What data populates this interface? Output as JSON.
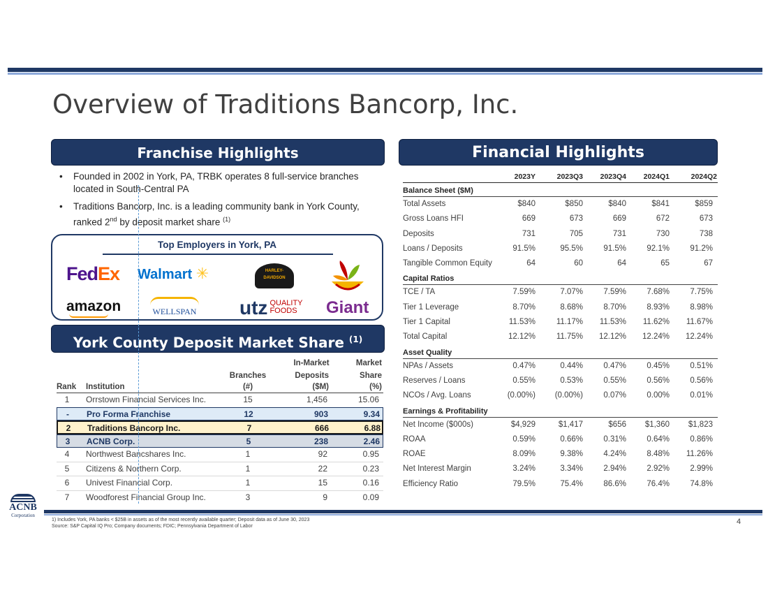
{
  "title": "Overview of Traditions Bancorp, Inc.",
  "franchise": {
    "banner": "Franchise Highlights",
    "bullets": [
      "Founded in 2002 in York, PA, TRBK operates 8 full-service branches located in South-Central PA",
      "Traditions Bancorp, Inc. is a leading community bank in York County, ranked 2"
    ],
    "bullet2_sup": "nd",
    "bullet2_tail": " by deposit market share ",
    "bullet2_note": "(1)"
  },
  "employers": {
    "title": "Top Employers in York, PA",
    "logos": {
      "fedex_fed": "Fed",
      "fedex_ex": "Ex",
      "walmart": "Walmart",
      "harley": "HARLEY-DAVIDSON",
      "amazon": "amazon",
      "wellspan": "WELLSPAN",
      "utz": "utz",
      "utz_tag1": "QUALITY",
      "utz_tag2": "FOODS",
      "giant": "Giant"
    }
  },
  "market_share": {
    "banner": "York County Deposit Market Share",
    "banner_note": "(1)",
    "headers": {
      "rank": "Rank",
      "institution": "Institution",
      "branches_1": "Branches",
      "branches_2": "(#)",
      "deposits_0": "In-Market",
      "deposits_1": "Deposits",
      "deposits_2": "($M)",
      "share_0": "Market",
      "share_1": "Share",
      "share_2": "(%)"
    },
    "rows": [
      {
        "rank": "1",
        "institution": "Orrstown Financial Services Inc.",
        "branches": "15",
        "deposits": "1,456",
        "share": "15.06"
      },
      {
        "rank": "-",
        "institution": "Pro Forma Franchise",
        "branches": "12",
        "deposits": "903",
        "share": "9.34"
      },
      {
        "rank": "2",
        "institution": "Traditions Bancorp Inc.",
        "branches": "7",
        "deposits": "666",
        "share": "6.88"
      },
      {
        "rank": "3",
        "institution": "ACNB Corp.",
        "branches": "5",
        "deposits": "238",
        "share": "2.46"
      },
      {
        "rank": "4",
        "institution": "Northwest Bancshares Inc.",
        "branches": "1",
        "deposits": "92",
        "share": "0.95"
      },
      {
        "rank": "5",
        "institution": "Citizens & Northern Corp.",
        "branches": "1",
        "deposits": "22",
        "share": "0.23"
      },
      {
        "rank": "6",
        "institution": "Univest Financial Corp.",
        "branches": "1",
        "deposits": "15",
        "share": "0.16"
      },
      {
        "rank": "7",
        "institution": "Woodforest Financial Group Inc.",
        "branches": "3",
        "deposits": "9",
        "share": "0.09"
      }
    ]
  },
  "financial": {
    "banner": "Financial Highlights",
    "columns": [
      "2023Y",
      "2023Q3",
      "2023Q4",
      "2024Q1",
      "2024Q2"
    ],
    "sections": [
      {
        "title": "Balance Sheet ($M)",
        "rows": [
          {
            "label": "Total Assets",
            "values": [
              "$840",
              "$850",
              "$840",
              "$841",
              "$859"
            ]
          },
          {
            "label": "Gross Loans HFI",
            "values": [
              "669",
              "673",
              "669",
              "672",
              "673"
            ]
          },
          {
            "label": "Deposits",
            "values": [
              "731",
              "705",
              "731",
              "730",
              "738"
            ]
          },
          {
            "label": "Loans / Deposits",
            "values": [
              "91.5%",
              "95.5%",
              "91.5%",
              "92.1%",
              "91.2%"
            ]
          },
          {
            "label": "Tangible Common Equity",
            "values": [
              "64",
              "60",
              "64",
              "65",
              "67"
            ]
          }
        ]
      },
      {
        "title": "Capital Ratios",
        "rows": [
          {
            "label": "TCE / TA",
            "values": [
              "7.59%",
              "7.07%",
              "7.59%",
              "7.68%",
              "7.75%"
            ]
          },
          {
            "label": "Tier 1 Leverage",
            "values": [
              "8.70%",
              "8.68%",
              "8.70%",
              "8.93%",
              "8.98%"
            ]
          },
          {
            "label": "Tier 1 Capital",
            "values": [
              "11.53%",
              "11.17%",
              "11.53%",
              "11.62%",
              "11.67%"
            ]
          },
          {
            "label": "Total Capital",
            "values": [
              "12.12%",
              "11.75%",
              "12.12%",
              "12.24%",
              "12.24%"
            ]
          }
        ]
      },
      {
        "title": "Asset Quality",
        "rows": [
          {
            "label": "NPAs / Assets",
            "values": [
              "0.47%",
              "0.44%",
              "0.47%",
              "0.45%",
              "0.51%"
            ]
          },
          {
            "label": "Reserves / Loans",
            "values": [
              "0.55%",
              "0.53%",
              "0.55%",
              "0.56%",
              "0.56%"
            ]
          },
          {
            "label": "NCOs / Avg. Loans",
            "values": [
              "(0.00%)",
              "(0.00%)",
              "0.07%",
              "0.00%",
              "0.01%"
            ]
          }
        ]
      },
      {
        "title": "Earnings & Profitability",
        "rows": [
          {
            "label": "Net Income ($000s)",
            "values": [
              "$4,929",
              "$1,417",
              "$656",
              "$1,360",
              "$1,823"
            ]
          },
          {
            "label": "ROAA",
            "values": [
              "0.59%",
              "0.66%",
              "0.31%",
              "0.64%",
              "0.86%"
            ]
          },
          {
            "label": "ROAE",
            "values": [
              "8.09%",
              "9.38%",
              "4.24%",
              "8.48%",
              "11.26%"
            ]
          },
          {
            "label": "Net Interest Margin",
            "values": [
              "3.24%",
              "3.34%",
              "2.94%",
              "2.92%",
              "2.99%"
            ]
          },
          {
            "label": "Efficiency Ratio",
            "values": [
              "79.5%",
              "75.4%",
              "86.6%",
              "76.4%",
              "74.8%"
            ]
          }
        ]
      }
    ]
  },
  "footer": {
    "note1": "1)      Includes York, PA banks < $25B in assets as of the most recently available quarter; Deposit data as of June 30, 2023",
    "note2": "Source: S&P Capital IQ Pro; Company documents; FDIC; Pennsylvania Department of Labor",
    "page": "4",
    "logo_name": "ACNB",
    "logo_corp": "Corporation"
  }
}
